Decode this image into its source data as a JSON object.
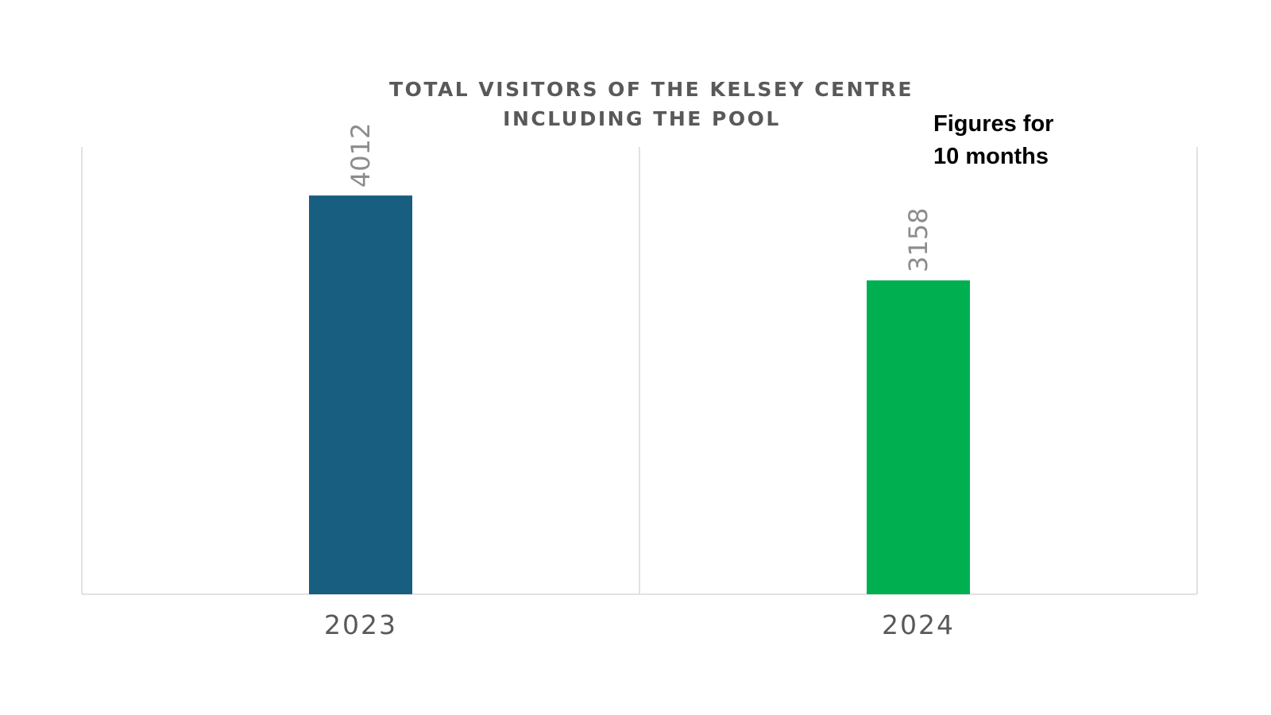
{
  "chart_data": {
    "type": "bar",
    "title_lines": [
      "TOTAL VISITORS OF THE KELSEY CENTRE",
      "INCLUDING THE POOL"
    ],
    "categories": [
      "2023",
      "2024"
    ],
    "values": [
      4012,
      3158
    ],
    "data_labels": [
      "4012",
      "3158"
    ],
    "bar_colors": [
      "#175e80",
      "#00b050"
    ],
    "annotation_lines": [
      "Figures for",
      "10 months"
    ],
    "ylim": [
      0,
      4500
    ],
    "grid": false,
    "legend": "none"
  }
}
